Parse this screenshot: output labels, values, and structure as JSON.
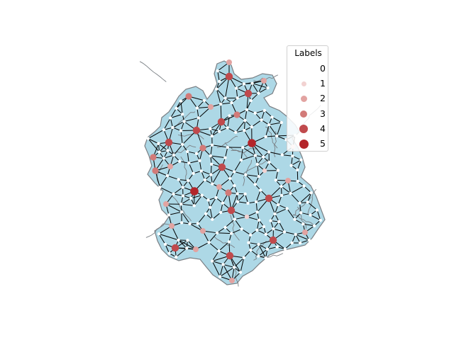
{
  "colors": {
    "region_fill": "#add8e6",
    "border": "#7a7f84",
    "edge": "#000000",
    "node_white": "#ffffff",
    "label_1": "#f2d2d1",
    "label_2": "#e2a3a1",
    "label_3": "#d27a78",
    "label_4": "#c04a4d",
    "label_5": "#b3252a"
  },
  "legend": {
    "title": "Labels",
    "entries": [
      {
        "label": "0",
        "color": "#ffffff"
      },
      {
        "label": "1",
        "color": "#f2d2d1"
      },
      {
        "label": "2",
        "color": "#e2a3a1"
      },
      {
        "label": "3",
        "color": "#d27a78"
      },
      {
        "label": "4",
        "color": "#c04a4d"
      },
      {
        "label": "5",
        "color": "#b3252a"
      }
    ]
  }
}
